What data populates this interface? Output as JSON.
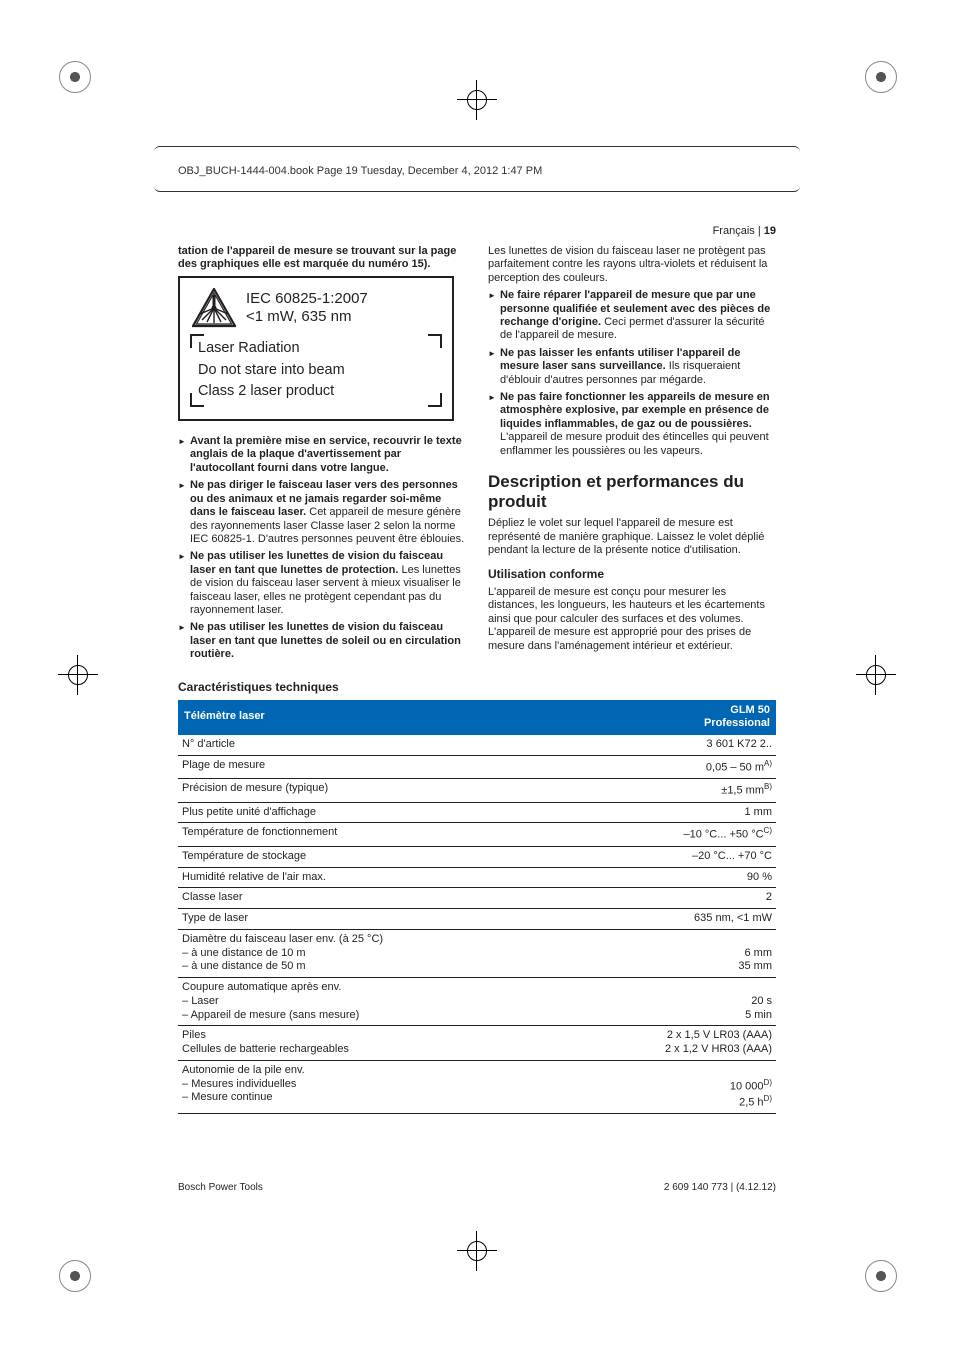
{
  "meta": {
    "topline": "OBJ_BUCH-1444-004.book  Page 19  Tuesday, December 4, 2012  1:47 PM",
    "lang": "Français",
    "pagenum": "19",
    "footer_left": "Bosch Power Tools",
    "footer_right": "2 609 140 773 | (4.12.12)"
  },
  "label": {
    "std": "IEC 60825-1:2007",
    "power": "<1 mW, 635 nm",
    "l1": "Laser Radiation",
    "l2": "Do not stare into beam",
    "l3": "Class 2 laser product"
  },
  "left": {
    "intro": "tation de l'appareil de mesure se trouvant sur la page des graphiques elle est marquée du numéro 15).",
    "b1": "Avant la première mise en service, recouvrir le texte anglais de la plaque d'avertissement par l'autocollant fourni dans votre langue.",
    "b2a": "Ne pas diriger le faisceau laser vers des personnes ou des animaux et ne jamais regarder soi-même dans le faisceau laser.",
    "b2b": " Cet appareil de mesure génère des rayonnements laser Classe laser 2 selon la norme IEC 60825-1. D'autres personnes peuvent être éblouies.",
    "b3a": "Ne pas utiliser les lunettes de vision du faisceau laser en tant que lunettes de protection.",
    "b3b": " Les lunettes de vision du faisceau laser servent à mieux visualiser le faisceau laser, elles ne protègent cependant pas du rayonnement laser.",
    "b4": "Ne pas utiliser les lunettes de vision du faisceau laser en tant que lunettes de soleil ou en circulation routière."
  },
  "right": {
    "cont": "Les lunettes de vision du faisceau laser ne protègent pas parfaitement contre les rayons ultra-violets et réduisent la perception des couleurs.",
    "b5a": "Ne faire réparer l'appareil de mesure que par une personne qualifiée et seulement avec des pièces de rechange d'origine.",
    "b5b": " Ceci permet d'assurer la sécurité de l'appareil de mesure.",
    "b6a": "Ne pas laisser les enfants utiliser l'appareil de mesure laser sans surveillance.",
    "b6b": " Ils risqueraient d'éblouir d'autres personnes par mégarde.",
    "b7a": "Ne pas faire fonctionner les appareils de mesure en atmosphère explosive, par exemple en présence de liquides inflammables, de gaz ou de poussières.",
    "b7b": " L'appareil de mesure produit des étincelles qui peuvent enflammer les poussières ou les vapeurs.",
    "h2": "Description et performances du produit",
    "p1": "Dépliez le volet sur lequel l'appareil de mesure est représenté de manière graphique. Laissez le volet déplié pendant la lecture de la présente notice d'utilisation.",
    "h3": "Utilisation conforme",
    "p2": "L'appareil de mesure est conçu pour mesurer les distances, les longueurs, les hauteurs et les écartements ainsi que pour calculer des surfaces et des volumes. L'appareil de mesure est approprié pour des prises de mesure dans l'aménagement intérieur et extérieur."
  },
  "spec": {
    "title": "Caractéristiques techniques",
    "header_left": "Télémètre laser",
    "header_r1": "GLM 50",
    "header_r2": "Professional",
    "rows": [
      {
        "l": "N° d'article",
        "r": "3 601 K72 2.."
      },
      {
        "l": "Plage de mesure",
        "r": "0,05 – 50 m",
        "sup": "A)"
      },
      {
        "l": "Précision de mesure (typique)",
        "r": "±1,5 mm",
        "sup": "B)"
      },
      {
        "l": "Plus petite unité d'affichage",
        "r": "1 mm"
      },
      {
        "l": "Température de fonctionnement",
        "r": "–10 °C... +50 °C",
        "sup": "C)"
      },
      {
        "l": "Température de stockage",
        "r": "–20 °C... +70 °C"
      },
      {
        "l": "Humidité relative de l'air max.",
        "r": "90 %"
      },
      {
        "l": "Classe laser",
        "r": "2"
      },
      {
        "l": "Type de laser",
        "r": "635 nm, <1 mW"
      }
    ],
    "row_diam": {
      "l": "Diamètre du faisceau laser env. (à 25 °C)",
      "a": "à une distance de 10 m",
      "av": "6 mm",
      "b": "à une distance de 50 m",
      "bv": "35 mm"
    },
    "row_cut": {
      "l": "Coupure automatique après env.",
      "a": "Laser",
      "av": "20 s",
      "b": "Appareil de mesure (sans mesure)",
      "bv": "5 min"
    },
    "row_pile": {
      "l1": "Piles",
      "r1": "2 x 1,5 V LR03 (AAA)",
      "l2": "Cellules de batterie rechargeables",
      "r2": "2 x 1,2 V HR03 (AAA)"
    },
    "row_auto": {
      "l": "Autonomie de la pile env.",
      "a": "Mesures individuelles",
      "av": "10 000",
      "as": "D)",
      "b": "Mesure continue",
      "bv": "2,5 h",
      "bs": "D)"
    }
  }
}
